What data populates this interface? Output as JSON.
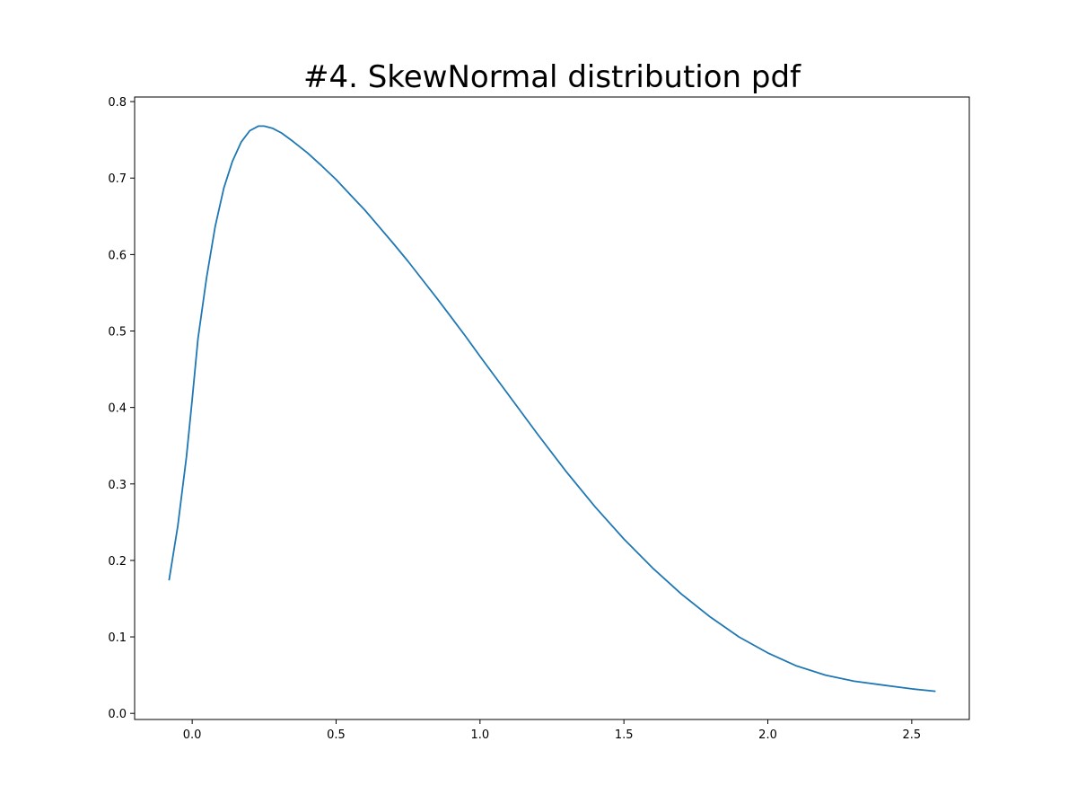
{
  "chart_data": {
    "type": "line",
    "title": "#4. SkewNormal distribution pdf",
    "xlabel": "",
    "ylabel": "",
    "xlim": [
      -0.2,
      2.7
    ],
    "ylim": [
      -0.008,
      0.806
    ],
    "xticks": [
      0.0,
      0.5,
      1.0,
      1.5,
      2.0,
      2.5
    ],
    "xtick_labels": [
      "0.0",
      "0.5",
      "1.0",
      "1.5",
      "2.0",
      "2.5"
    ],
    "yticks": [
      0.0,
      0.1,
      0.2,
      0.3,
      0.4,
      0.5,
      0.6,
      0.7,
      0.8
    ],
    "ytick_labels": [
      "0.0",
      "0.1",
      "0.2",
      "0.3",
      "0.4",
      "0.5",
      "0.6",
      "0.7",
      "0.8"
    ],
    "grid": false,
    "series": [
      {
        "color": "#1f77b4",
        "x": [
          -0.08,
          -0.05,
          -0.02,
          0.0,
          0.02,
          0.05,
          0.08,
          0.11,
          0.14,
          0.17,
          0.2,
          0.23,
          0.25,
          0.28,
          0.31,
          0.35,
          0.4,
          0.45,
          0.5,
          0.55,
          0.6,
          0.65,
          0.7,
          0.75,
          0.8,
          0.85,
          0.9,
          0.95,
          1.0,
          1.1,
          1.2,
          1.3,
          1.4,
          1.5,
          1.6,
          1.7,
          1.8,
          1.9,
          2.0,
          2.1,
          2.2,
          2.3,
          2.4,
          2.5,
          2.58
        ],
        "values": [
          0.175,
          0.245,
          0.335,
          0.41,
          0.49,
          0.57,
          0.637,
          0.687,
          0.722,
          0.747,
          0.762,
          0.768,
          0.768,
          0.765,
          0.759,
          0.748,
          0.733,
          0.716,
          0.698,
          0.678,
          0.658,
          0.636,
          0.614,
          0.591,
          0.567,
          0.543,
          0.518,
          0.493,
          0.467,
          0.416,
          0.365,
          0.316,
          0.27,
          0.228,
          0.19,
          0.156,
          0.126,
          0.1,
          0.079,
          0.062,
          0.05,
          0.042,
          0.037,
          0.032,
          0.029
        ]
      }
    ]
  }
}
